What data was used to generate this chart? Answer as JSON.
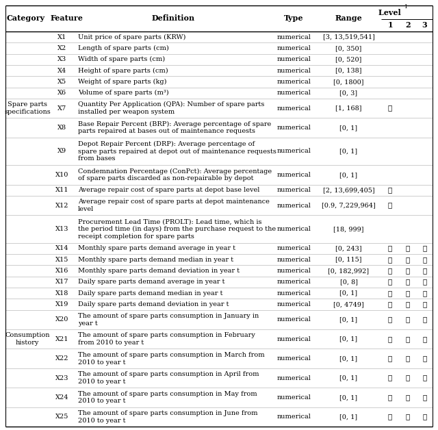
{
  "rows": [
    {
      "category": "",
      "feature": "X1",
      "definition": "Unit price of spare parts (KRW)",
      "type": "numerical",
      "range": "[3, 13,519,541]",
      "l1": false,
      "l2": false,
      "l3": false,
      "def_lines": 1
    },
    {
      "category": "",
      "feature": "X2",
      "definition": "Length of spare parts (cm)",
      "type": "numerical",
      "range": "[0, 350]",
      "l1": false,
      "l2": false,
      "l3": false,
      "def_lines": 1
    },
    {
      "category": "",
      "feature": "X3",
      "definition": "Width of spare parts (cm)",
      "type": "numerical",
      "range": "[0, 520]",
      "l1": false,
      "l2": false,
      "l3": false,
      "def_lines": 1
    },
    {
      "category": "",
      "feature": "X4",
      "definition": "Height of spare parts (cm)",
      "type": "numerical",
      "range": "[0, 138]",
      "l1": false,
      "l2": false,
      "l3": false,
      "def_lines": 1
    },
    {
      "category": "",
      "feature": "X5",
      "definition": "Weight of spare parts (kg)",
      "type": "numerical",
      "range": "[0, 1800]",
      "l1": false,
      "l2": false,
      "l3": false,
      "def_lines": 1
    },
    {
      "category": "",
      "feature": "X6",
      "definition": "Volume of spare parts (m³)",
      "type": "numerical",
      "range": "[0, 3]",
      "l1": false,
      "l2": false,
      "l3": false,
      "def_lines": 1
    },
    {
      "category": "Spare parts\nspecifications",
      "feature": "X7",
      "definition": "Quantity Per Application (QPA): Number of spare parts\ninstalled per weapon system",
      "type": "numerical",
      "range": "[1, 168]",
      "l1": true,
      "l2": false,
      "l3": false,
      "def_lines": 2
    },
    {
      "category": "",
      "feature": "X8",
      "definition": "Base Repair Percent (BRP): Average percentage of spare\nparts repaired at bases out of maintenance requests",
      "type": "numerical",
      "range": "[0, 1]",
      "l1": false,
      "l2": false,
      "l3": false,
      "def_lines": 2
    },
    {
      "category": "",
      "feature": "X9",
      "definition": "Depot Repair Percent (DRP): Average percentage of\nspare parts repaired at depot out of maintenance requests\nfrom bases",
      "type": "numerical",
      "range": "[0, 1]",
      "l1": false,
      "l2": false,
      "l3": false,
      "def_lines": 3
    },
    {
      "category": "",
      "feature": "X10",
      "definition": "Condemnation Percentage (ConPct): Average percentage\nof spare parts discarded as non-repairable by depot",
      "type": "numerical",
      "range": "[0, 1]",
      "l1": false,
      "l2": false,
      "l3": false,
      "def_lines": 2
    },
    {
      "category": "",
      "feature": "X11",
      "definition": "Average repair cost of spare parts at depot base level",
      "type": "numerical",
      "range": "[2, 13,699,405]",
      "l1": true,
      "l2": false,
      "l3": false,
      "def_lines": 1
    },
    {
      "category": "",
      "feature": "X12",
      "definition": "Average repair cost of spare parts at depot maintenance\nlevel",
      "type": "numerical",
      "range": "[0.9, 7,229,964]",
      "l1": true,
      "l2": false,
      "l3": false,
      "def_lines": 2
    },
    {
      "category": "",
      "feature": "X13",
      "definition": "Procurement Lead Time (PROLT): Lead time, which is\nthe period time (in days) from the purchase request to the\nreceipt completion for spare parts",
      "type": "numerical",
      "range": "[18, 999]",
      "l1": false,
      "l2": false,
      "l3": false,
      "def_lines": 3
    },
    {
      "category": "",
      "feature": "X14",
      "definition": "Monthly spare parts demand average in year t",
      "type": "numerical",
      "range": "[0, 243]",
      "l1": true,
      "l2": true,
      "l3": true,
      "def_lines": 1
    },
    {
      "category": "",
      "feature": "X15",
      "definition": "Monthly spare parts demand median in year t",
      "type": "numerical",
      "range": "[0, 115]",
      "l1": true,
      "l2": true,
      "l3": true,
      "def_lines": 1
    },
    {
      "category": "",
      "feature": "X16",
      "definition": "Monthly spare parts demand deviation in year t",
      "type": "numerical",
      "range": "[0, 182,992]",
      "l1": true,
      "l2": true,
      "l3": true,
      "def_lines": 1
    },
    {
      "category": "",
      "feature": "X17",
      "definition": "Daily spare parts demand average in year t",
      "type": "numerical",
      "range": "[0, 8]",
      "l1": true,
      "l2": true,
      "l3": true,
      "def_lines": 1
    },
    {
      "category": "",
      "feature": "X18",
      "definition": "Daily spare parts demand median in year t",
      "type": "numerical",
      "range": "[0, 1]",
      "l1": true,
      "l2": true,
      "l3": true,
      "def_lines": 1
    },
    {
      "category": "",
      "feature": "X19",
      "definition": "Daily spare parts demand deviation in year t",
      "type": "numerical",
      "range": "[0, 4749]",
      "l1": true,
      "l2": true,
      "l3": true,
      "def_lines": 1
    },
    {
      "category": "",
      "feature": "X20",
      "definition": "The amount of spare parts consumption in January in\nyear t",
      "type": "numerical",
      "range": "[0, 1]",
      "l1": true,
      "l2": true,
      "l3": true,
      "def_lines": 2
    },
    {
      "category": "Consumption\nhistory",
      "feature": "X21",
      "definition": "The amount of spare parts consumption in February\nfrom 2010 to year t",
      "type": "numerical",
      "range": "[0, 1]",
      "l1": true,
      "l2": true,
      "l3": true,
      "def_lines": 2
    },
    {
      "category": "",
      "feature": "X22",
      "definition": "The amount of spare parts consumption in March from\n2010 to year t",
      "type": "numerical",
      "range": "[0, 1]",
      "l1": true,
      "l2": true,
      "l3": true,
      "def_lines": 2
    },
    {
      "category": "",
      "feature": "X23",
      "definition": "The amount of spare parts consumption in April from\n2010 to year t",
      "type": "numerical",
      "range": "[0, 1]",
      "l1": true,
      "l2": true,
      "l3": true,
      "def_lines": 2
    },
    {
      "category": "",
      "feature": "X24",
      "definition": "The amount of spare parts consumption in May from\n2010 to year t",
      "type": "numerical",
      "range": "[0, 1]",
      "l1": true,
      "l2": true,
      "l3": true,
      "def_lines": 2
    },
    {
      "category": "",
      "feature": "X25",
      "definition": "The amount of spare parts consumption in June from\n2010 to year t",
      "type": "numerical",
      "range": "[0, 1]",
      "l1": true,
      "l2": true,
      "l3": true,
      "def_lines": 2
    }
  ],
  "background_color": "#ffffff",
  "line_color": "#aaaaaa",
  "thick_line_color": "#000000",
  "text_color": "#000000",
  "font_size": 7.0,
  "header_font_size": 8.0,
  "check_char": "✓"
}
